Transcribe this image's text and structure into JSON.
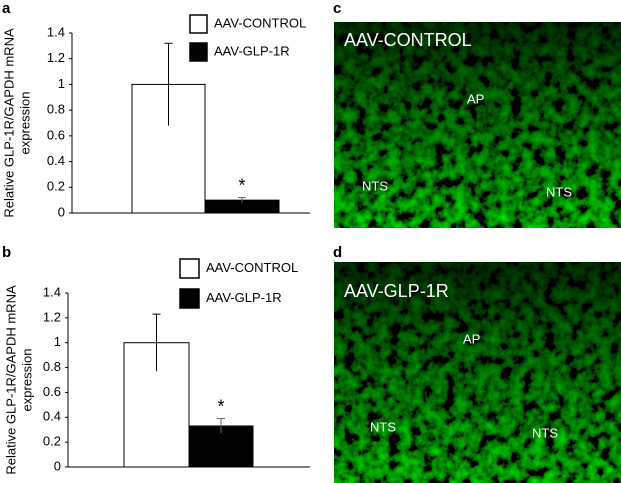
{
  "chart_data": [
    {
      "type": "bar",
      "panel": "a",
      "ylabel": [
        "Relative GLP-1R/GAPDH mRNA",
        "expression"
      ],
      "ylim": [
        0,
        1.4
      ],
      "yticks": [
        0,
        0.2,
        0.4,
        0.6,
        0.8,
        1,
        1.2,
        1.4
      ],
      "series": [
        {
          "name": "AAV-CONTROL",
          "color": "#ffffff",
          "values": [
            1
          ],
          "errors": [
            0.32
          ]
        },
        {
          "name": "AAV-GLP-1R",
          "color": "#000000",
          "values": [
            0.1
          ],
          "errors": [
            0.02
          ]
        }
      ],
      "annotation": "*"
    },
    {
      "type": "bar",
      "panel": "b",
      "ylabel": [
        "Relative GLP-1R/GAPDH mRNA",
        "expression"
      ],
      "ylim": [
        0,
        1.4
      ],
      "yticks": [
        0,
        0.2,
        0.4,
        0.6,
        0.8,
        1,
        1.2,
        1.4
      ],
      "series": [
        {
          "name": "AAV-CONTROL",
          "color": "#ffffff",
          "values": [
            1
          ],
          "errors": [
            0.23
          ]
        },
        {
          "name": "AAV-GLP-1R",
          "color": "#000000",
          "values": [
            0.33
          ],
          "errors": [
            0.06
          ]
        }
      ],
      "annotation": "*"
    }
  ],
  "images": [
    {
      "panel": "c",
      "title": "AAV-CONTROL",
      "labels": [
        "AP",
        "NTS",
        "NTS"
      ]
    },
    {
      "panel": "d",
      "title": "AAV-GLP-1R",
      "labels": [
        "AP",
        "NTS",
        "NTS"
      ]
    }
  ]
}
